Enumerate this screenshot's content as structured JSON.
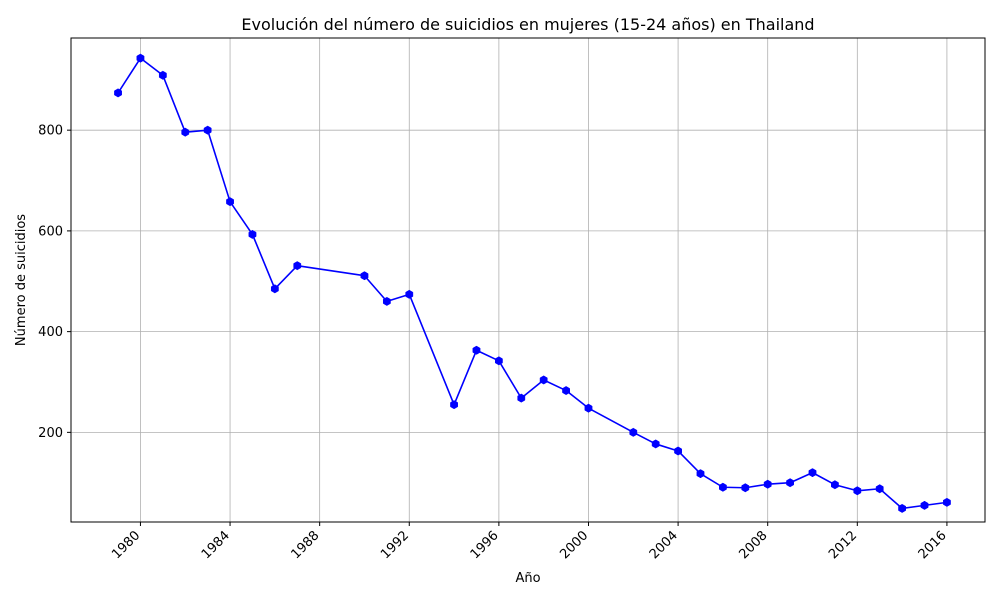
{
  "chart_data": {
    "type": "line",
    "title": "Evolución del número de suicidios en mujeres (15-24 años) en Thailand",
    "xlabel": "Año",
    "ylabel": "Número de suicidios",
    "xlim": [
      1976.9,
      2017.7
    ],
    "ylim": [
      22,
      983
    ],
    "xticks": [
      1980,
      1984,
      1988,
      1992,
      1996,
      2000,
      2004,
      2008,
      2012,
      2016
    ],
    "yticks": [
      200,
      400,
      600,
      800
    ],
    "grid": true,
    "series": [
      {
        "color": "#0000ff",
        "marker": "hexagon",
        "points": [
          {
            "x": 1979,
            "y": 874
          },
          {
            "x": 1980,
            "y": 943
          },
          {
            "x": 1981,
            "y": 909
          },
          {
            "x": 1982,
            "y": 796
          },
          {
            "x": 1983,
            "y": 800
          },
          {
            "x": 1984,
            "y": 658
          },
          {
            "x": 1985,
            "y": 593
          },
          {
            "x": 1986,
            "y": 485
          },
          {
            "x": 1987,
            "y": 531
          },
          {
            "x": 1990,
            "y": 511
          },
          {
            "x": 1991,
            "y": 460
          },
          {
            "x": 1992,
            "y": 474
          },
          {
            "x": 1994,
            "y": 255
          },
          {
            "x": 1995,
            "y": 363
          },
          {
            "x": 1996,
            "y": 342
          },
          {
            "x": 1997,
            "y": 268
          },
          {
            "x": 1998,
            "y": 304
          },
          {
            "x": 1999,
            "y": 283
          },
          {
            "x": 2000,
            "y": 248
          },
          {
            "x": 2002,
            "y": 200
          },
          {
            "x": 2003,
            "y": 177
          },
          {
            "x": 2004,
            "y": 163
          },
          {
            "x": 2005,
            "y": 118
          },
          {
            "x": 2006,
            "y": 91
          },
          {
            "x": 2007,
            "y": 90
          },
          {
            "x": 2008,
            "y": 97
          },
          {
            "x": 2009,
            "y": 100
          },
          {
            "x": 2010,
            "y": 120
          },
          {
            "x": 2011,
            "y": 96
          },
          {
            "x": 2012,
            "y": 84
          },
          {
            "x": 2013,
            "y": 88
          },
          {
            "x": 2014,
            "y": 49
          },
          {
            "x": 2015,
            "y": 55
          },
          {
            "x": 2016,
            "y": 61
          }
        ]
      }
    ]
  }
}
